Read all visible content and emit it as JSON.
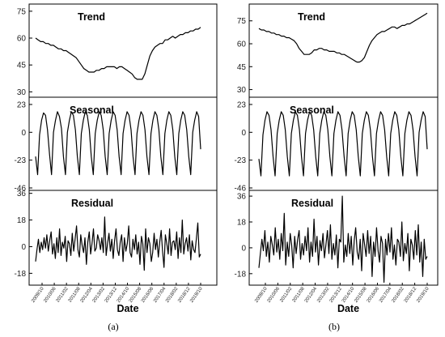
{
  "chart_data": [
    {
      "type": "line",
      "caption": "(a)",
      "xlabel": "Date",
      "date_ticks": [
        "2009/10",
        "2010/06",
        "2011/02",
        "2011/08",
        "2012/04",
        "2013/02",
        "2013/12",
        "2014/10",
        "2015/08",
        "2016/06",
        "2017/04",
        "2018/02",
        "2018/12",
        "2019/10"
      ],
      "panels": [
        {
          "title": "Trend",
          "yticks": [
            30,
            45,
            60,
            75
          ],
          "ylim": [
            27,
            79
          ],
          "values": [
            60,
            59,
            58,
            58,
            57,
            57,
            56,
            56,
            55,
            54,
            54,
            53,
            53,
            52,
            51,
            50,
            49,
            47,
            45,
            43,
            42,
            41,
            41,
            41,
            42,
            42,
            43,
            43,
            44,
            44,
            44,
            44,
            43,
            44,
            44,
            43,
            42,
            41,
            40,
            38,
            37,
            37,
            37,
            40,
            45,
            50,
            53,
            55,
            56,
            57,
            57,
            59,
            59,
            60,
            61,
            60,
            61,
            62,
            62,
            63,
            63,
            64,
            64,
            65,
            65,
            66
          ]
        },
        {
          "title": "Seasonal",
          "yticks": [
            -46,
            -23,
            0,
            23
          ],
          "ylim": [
            -48,
            29
          ],
          "values": [
            -20,
            -35,
            -2,
            10,
            16,
            14,
            2,
            -18,
            -35,
            0,
            10,
            17,
            13,
            3,
            -20,
            -35,
            0,
            10,
            17,
            14,
            2,
            -20,
            -35,
            -1,
            10,
            17,
            14,
            2,
            -20,
            -35,
            -1,
            10,
            17,
            14,
            2,
            -20,
            -35,
            -1,
            10,
            17,
            14,
            2,
            -20,
            -35,
            -1,
            10,
            17,
            14,
            2,
            -20,
            -35,
            -1,
            10,
            17,
            14,
            2,
            -20,
            -35,
            -1,
            10,
            17,
            14,
            2,
            -20,
            -35,
            -1,
            10,
            17,
            14,
            2,
            -20,
            -35,
            -1,
            10,
            17,
            14,
            2,
            -20,
            -35,
            0,
            10,
            17,
            13,
            -14
          ]
        },
        {
          "title": "Residual",
          "yticks": [
            -18,
            0,
            18,
            36
          ],
          "ylim": [
            -26,
            38
          ],
          "values": [
            -10,
            -2,
            5,
            -4,
            3,
            -2,
            6,
            -1,
            8,
            -3,
            4,
            10,
            -5,
            2,
            -8,
            6,
            -4,
            12,
            -6,
            3,
            -1,
            7,
            -10,
            4,
            2,
            -6,
            9,
            -3,
            5,
            14,
            -2,
            -7,
            8,
            1,
            -4,
            6,
            -12,
            3,
            10,
            -5,
            2,
            12,
            -3,
            -1,
            8,
            4,
            -2,
            6,
            -4,
            20,
            -6,
            2,
            9,
            -3,
            5,
            -8,
            4,
            12,
            -2,
            -6,
            3,
            8,
            -10,
            6,
            -3,
            2,
            14,
            -4,
            -7,
            5,
            -2,
            8,
            -5,
            3,
            -12,
            7,
            2,
            -16,
            12,
            -4,
            6,
            2,
            -10,
            -4,
            9,
            -2,
            5,
            -7,
            3,
            11,
            -3,
            -14,
            8,
            2,
            -5,
            12,
            -6,
            3,
            4,
            -2,
            10,
            -8,
            6,
            -4,
            18,
            -5,
            2,
            6,
            -3,
            8,
            -9,
            4,
            -2,
            -4,
            6,
            16,
            -7,
            -5
          ]
        }
      ]
    },
    {
      "type": "line",
      "caption": "(b)",
      "xlabel": "Date",
      "date_ticks": [
        "2009/10",
        "2010/06",
        "2011/02",
        "2011/08",
        "2012/04",
        "2013/02",
        "2013/12",
        "2014/10",
        "2015/08",
        "2016/06",
        "2017/04",
        "2018/02",
        "2018/12",
        "2019/10"
      ],
      "panels": [
        {
          "title": "Trend",
          "yticks": [
            30,
            45,
            60,
            75
          ],
          "ylim": [
            25,
            86
          ],
          "values": [
            70,
            69,
            69,
            68,
            68,
            67,
            67,
            66,
            66,
            65,
            65,
            64,
            64,
            63,
            62,
            60,
            57,
            55,
            53,
            53,
            53,
            54,
            56,
            56,
            57,
            57,
            56,
            56,
            55,
            55,
            55,
            54,
            54,
            53,
            53,
            52,
            51,
            50,
            49,
            48,
            48,
            49,
            51,
            55,
            59,
            62,
            64,
            66,
            67,
            68,
            68,
            69,
            70,
            71,
            71,
            70,
            71,
            72,
            72,
            73,
            73,
            74,
            75,
            76,
            77,
            78,
            79,
            80
          ]
        },
        {
          "title": "Seasonal",
          "yticks": [
            -46,
            -23,
            0,
            23
          ],
          "ylim": [
            -48,
            29
          ],
          "values": [
            -22,
            -36,
            -2,
            10,
            17,
            14,
            2,
            -20,
            -36,
            -1,
            10,
            17,
            14,
            2,
            -20,
            -36,
            -1,
            10,
            17,
            14,
            2,
            -20,
            -36,
            -1,
            10,
            17,
            14,
            2,
            -20,
            -36,
            -1,
            10,
            17,
            14,
            2,
            -20,
            -36,
            -1,
            10,
            17,
            14,
            2,
            -20,
            -36,
            -1,
            10,
            17,
            14,
            2,
            -20,
            -36,
            -1,
            10,
            17,
            14,
            2,
            -20,
            -36,
            -1,
            10,
            17,
            14,
            2,
            -20,
            -36,
            -1,
            10,
            17,
            14,
            2,
            -20,
            -36,
            -1,
            10,
            17,
            14,
            2,
            -20,
            -36,
            0,
            10,
            17,
            13,
            -14
          ]
        },
        {
          "title": "Residual",
          "yticks": [
            -18,
            0,
            18,
            36
          ],
          "ylim": [
            -26,
            40
          ],
          "values": [
            -14,
            -4,
            6,
            -2,
            12,
            -6,
            4,
            -10,
            8,
            2,
            -5,
            14,
            -3,
            6,
            -8,
            10,
            -2,
            24,
            -12,
            4,
            -6,
            10,
            2,
            -14,
            8,
            -4,
            6,
            12,
            -8,
            3,
            -5,
            8,
            -2,
            14,
            -10,
            4,
            -6,
            20,
            -3,
            8,
            -12,
            5,
            -2,
            10,
            -7,
            2,
            12,
            -4,
            16,
            -8,
            3,
            -5,
            9,
            -14,
            6,
            4,
            36,
            -10,
            2,
            -6,
            10,
            -4,
            8,
            -12,
            5,
            14,
            -3,
            -8,
            6,
            -16,
            10,
            2,
            -6,
            12,
            -4,
            8,
            -20,
            4,
            -6,
            14,
            -2,
            -10,
            8,
            3,
            -24,
            6,
            -5,
            10,
            -3,
            14,
            -8,
            2,
            -12,
            6,
            4,
            -6,
            18,
            -9,
            3,
            -4,
            10,
            -16,
            6,
            2,
            -8,
            12,
            -5,
            16,
            -10,
            4,
            -20,
            6,
            -8,
            -6
          ]
        }
      ]
    }
  ]
}
